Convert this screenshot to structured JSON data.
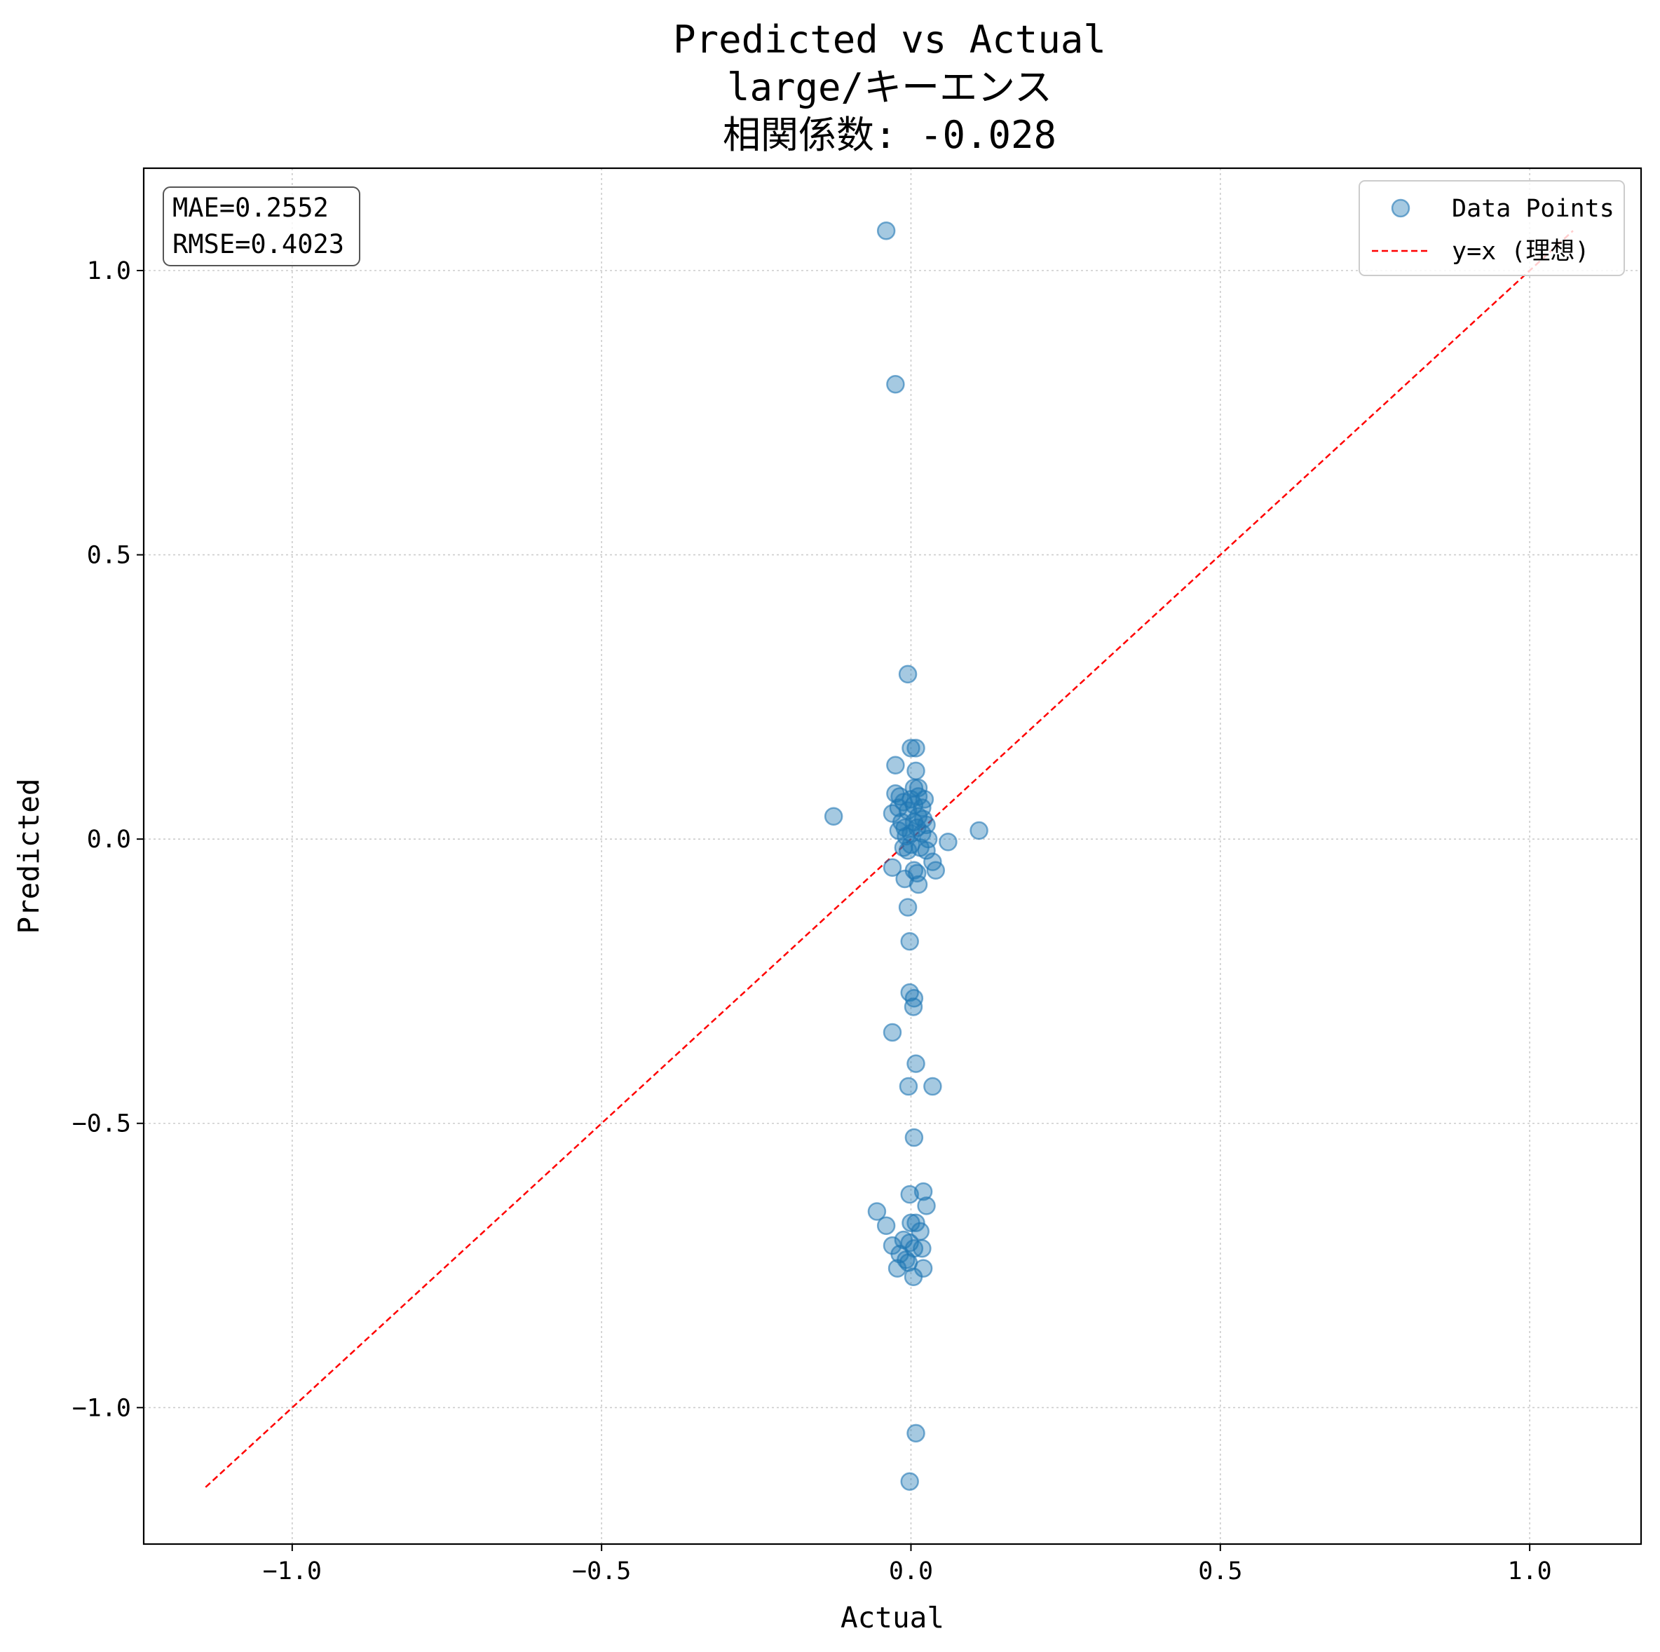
{
  "chart_data": {
    "type": "scatter",
    "title_lines": [
      "Predicted vs Actual",
      "large/キーエンス",
      "相関係数: -0.028"
    ],
    "xlabel": "Actual",
    "ylabel": "Predicted",
    "xlim": [
      -1.24,
      1.18
    ],
    "ylim": [
      -1.24,
      1.18
    ],
    "x_ticks": [
      {
        "value": -1.0,
        "label": "−1.0"
      },
      {
        "value": -0.5,
        "label": "−0.5"
      },
      {
        "value": 0.0,
        "label": "0.0"
      },
      {
        "value": 0.5,
        "label": "0.5"
      },
      {
        "value": 1.0,
        "label": "1.0"
      }
    ],
    "y_ticks": [
      {
        "value": -1.0,
        "label": "−1.0"
      },
      {
        "value": -0.5,
        "label": "−0.5"
      },
      {
        "value": 0.0,
        "label": "0.0"
      },
      {
        "value": 0.5,
        "label": "0.5"
      },
      {
        "value": 1.0,
        "label": "1.0"
      }
    ],
    "grid": true,
    "legend": {
      "position": "upper right",
      "entries": [
        {
          "label": "Data Points",
          "kind": "marker"
        },
        {
          "label": "y=x (理想)",
          "kind": "dashed-line"
        }
      ]
    },
    "stats_box": {
      "lines": [
        "MAE=0.2552",
        "RMSE=0.4023"
      ],
      "position": "upper left"
    },
    "colors": {
      "points": "#1f77b4",
      "ideal_line": "#ff0000",
      "grid": "#cccccc"
    },
    "ideal_line": {
      "x": [
        -1.14,
        1.07
      ],
      "y": [
        -1.14,
        1.07
      ]
    },
    "series": [
      {
        "name": "Data Points",
        "points": [
          [
            -0.04,
            1.07
          ],
          [
            -0.025,
            0.8
          ],
          [
            -0.005,
            0.29
          ],
          [
            0.0,
            0.16
          ],
          [
            0.008,
            0.16
          ],
          [
            -0.025,
            0.13
          ],
          [
            0.008,
            0.12
          ],
          [
            0.005,
            0.09
          ],
          [
            0.012,
            0.09
          ],
          [
            -0.025,
            0.08
          ],
          [
            -0.018,
            0.075
          ],
          [
            0.0,
            0.07
          ],
          [
            0.012,
            0.075
          ],
          [
            0.022,
            0.07
          ],
          [
            -0.012,
            0.065
          ],
          [
            0.005,
            0.06
          ],
          [
            0.018,
            0.055
          ],
          [
            -0.02,
            0.055
          ],
          [
            -0.005,
            0.05
          ],
          [
            -0.03,
            0.045
          ],
          [
            0.012,
            0.04
          ],
          [
            -0.125,
            0.04
          ],
          [
            0.02,
            0.035
          ],
          [
            -0.015,
            0.03
          ],
          [
            0.005,
            0.03
          ],
          [
            0.025,
            0.025
          ],
          [
            -0.01,
            0.02
          ],
          [
            0.01,
            0.02
          ],
          [
            -0.02,
            0.015
          ],
          [
            0.0,
            0.01
          ],
          [
            0.018,
            0.01
          ],
          [
            0.11,
            0.015
          ],
          [
            -0.008,
            0.005
          ],
          [
            0.028,
            0.0
          ],
          [
            0.06,
            -0.005
          ],
          [
            0.0,
            -0.01
          ],
          [
            -0.012,
            -0.015
          ],
          [
            0.015,
            -0.015
          ],
          [
            -0.005,
            -0.02
          ],
          [
            0.025,
            -0.02
          ],
          [
            0.035,
            -0.04
          ],
          [
            -0.03,
            -0.05
          ],
          [
            0.005,
            -0.055
          ],
          [
            0.01,
            -0.06
          ],
          [
            0.04,
            -0.055
          ],
          [
            -0.01,
            -0.07
          ],
          [
            0.012,
            -0.08
          ],
          [
            -0.005,
            -0.12
          ],
          [
            -0.002,
            -0.18
          ],
          [
            -0.002,
            -0.27
          ],
          [
            0.005,
            -0.28
          ],
          [
            0.004,
            -0.295
          ],
          [
            -0.03,
            -0.34
          ],
          [
            0.008,
            -0.395
          ],
          [
            -0.004,
            -0.435
          ],
          [
            0.035,
            -0.435
          ],
          [
            0.005,
            -0.525
          ],
          [
            -0.002,
            -0.625
          ],
          [
            0.02,
            -0.62
          ],
          [
            0.025,
            -0.645
          ],
          [
            -0.055,
            -0.655
          ],
          [
            -0.04,
            -0.68
          ],
          [
            0.0,
            -0.675
          ],
          [
            0.008,
            -0.675
          ],
          [
            0.015,
            -0.69
          ],
          [
            -0.012,
            -0.705
          ],
          [
            -0.03,
            -0.715
          ],
          [
            -0.002,
            -0.71
          ],
          [
            0.005,
            -0.72
          ],
          [
            0.018,
            -0.72
          ],
          [
            -0.018,
            -0.73
          ],
          [
            -0.008,
            -0.74
          ],
          [
            -0.004,
            -0.745
          ],
          [
            -0.022,
            -0.755
          ],
          [
            0.02,
            -0.755
          ],
          [
            0.004,
            -0.77
          ],
          [
            0.008,
            -1.045
          ],
          [
            -0.002,
            -1.13
          ]
        ]
      }
    ]
  }
}
